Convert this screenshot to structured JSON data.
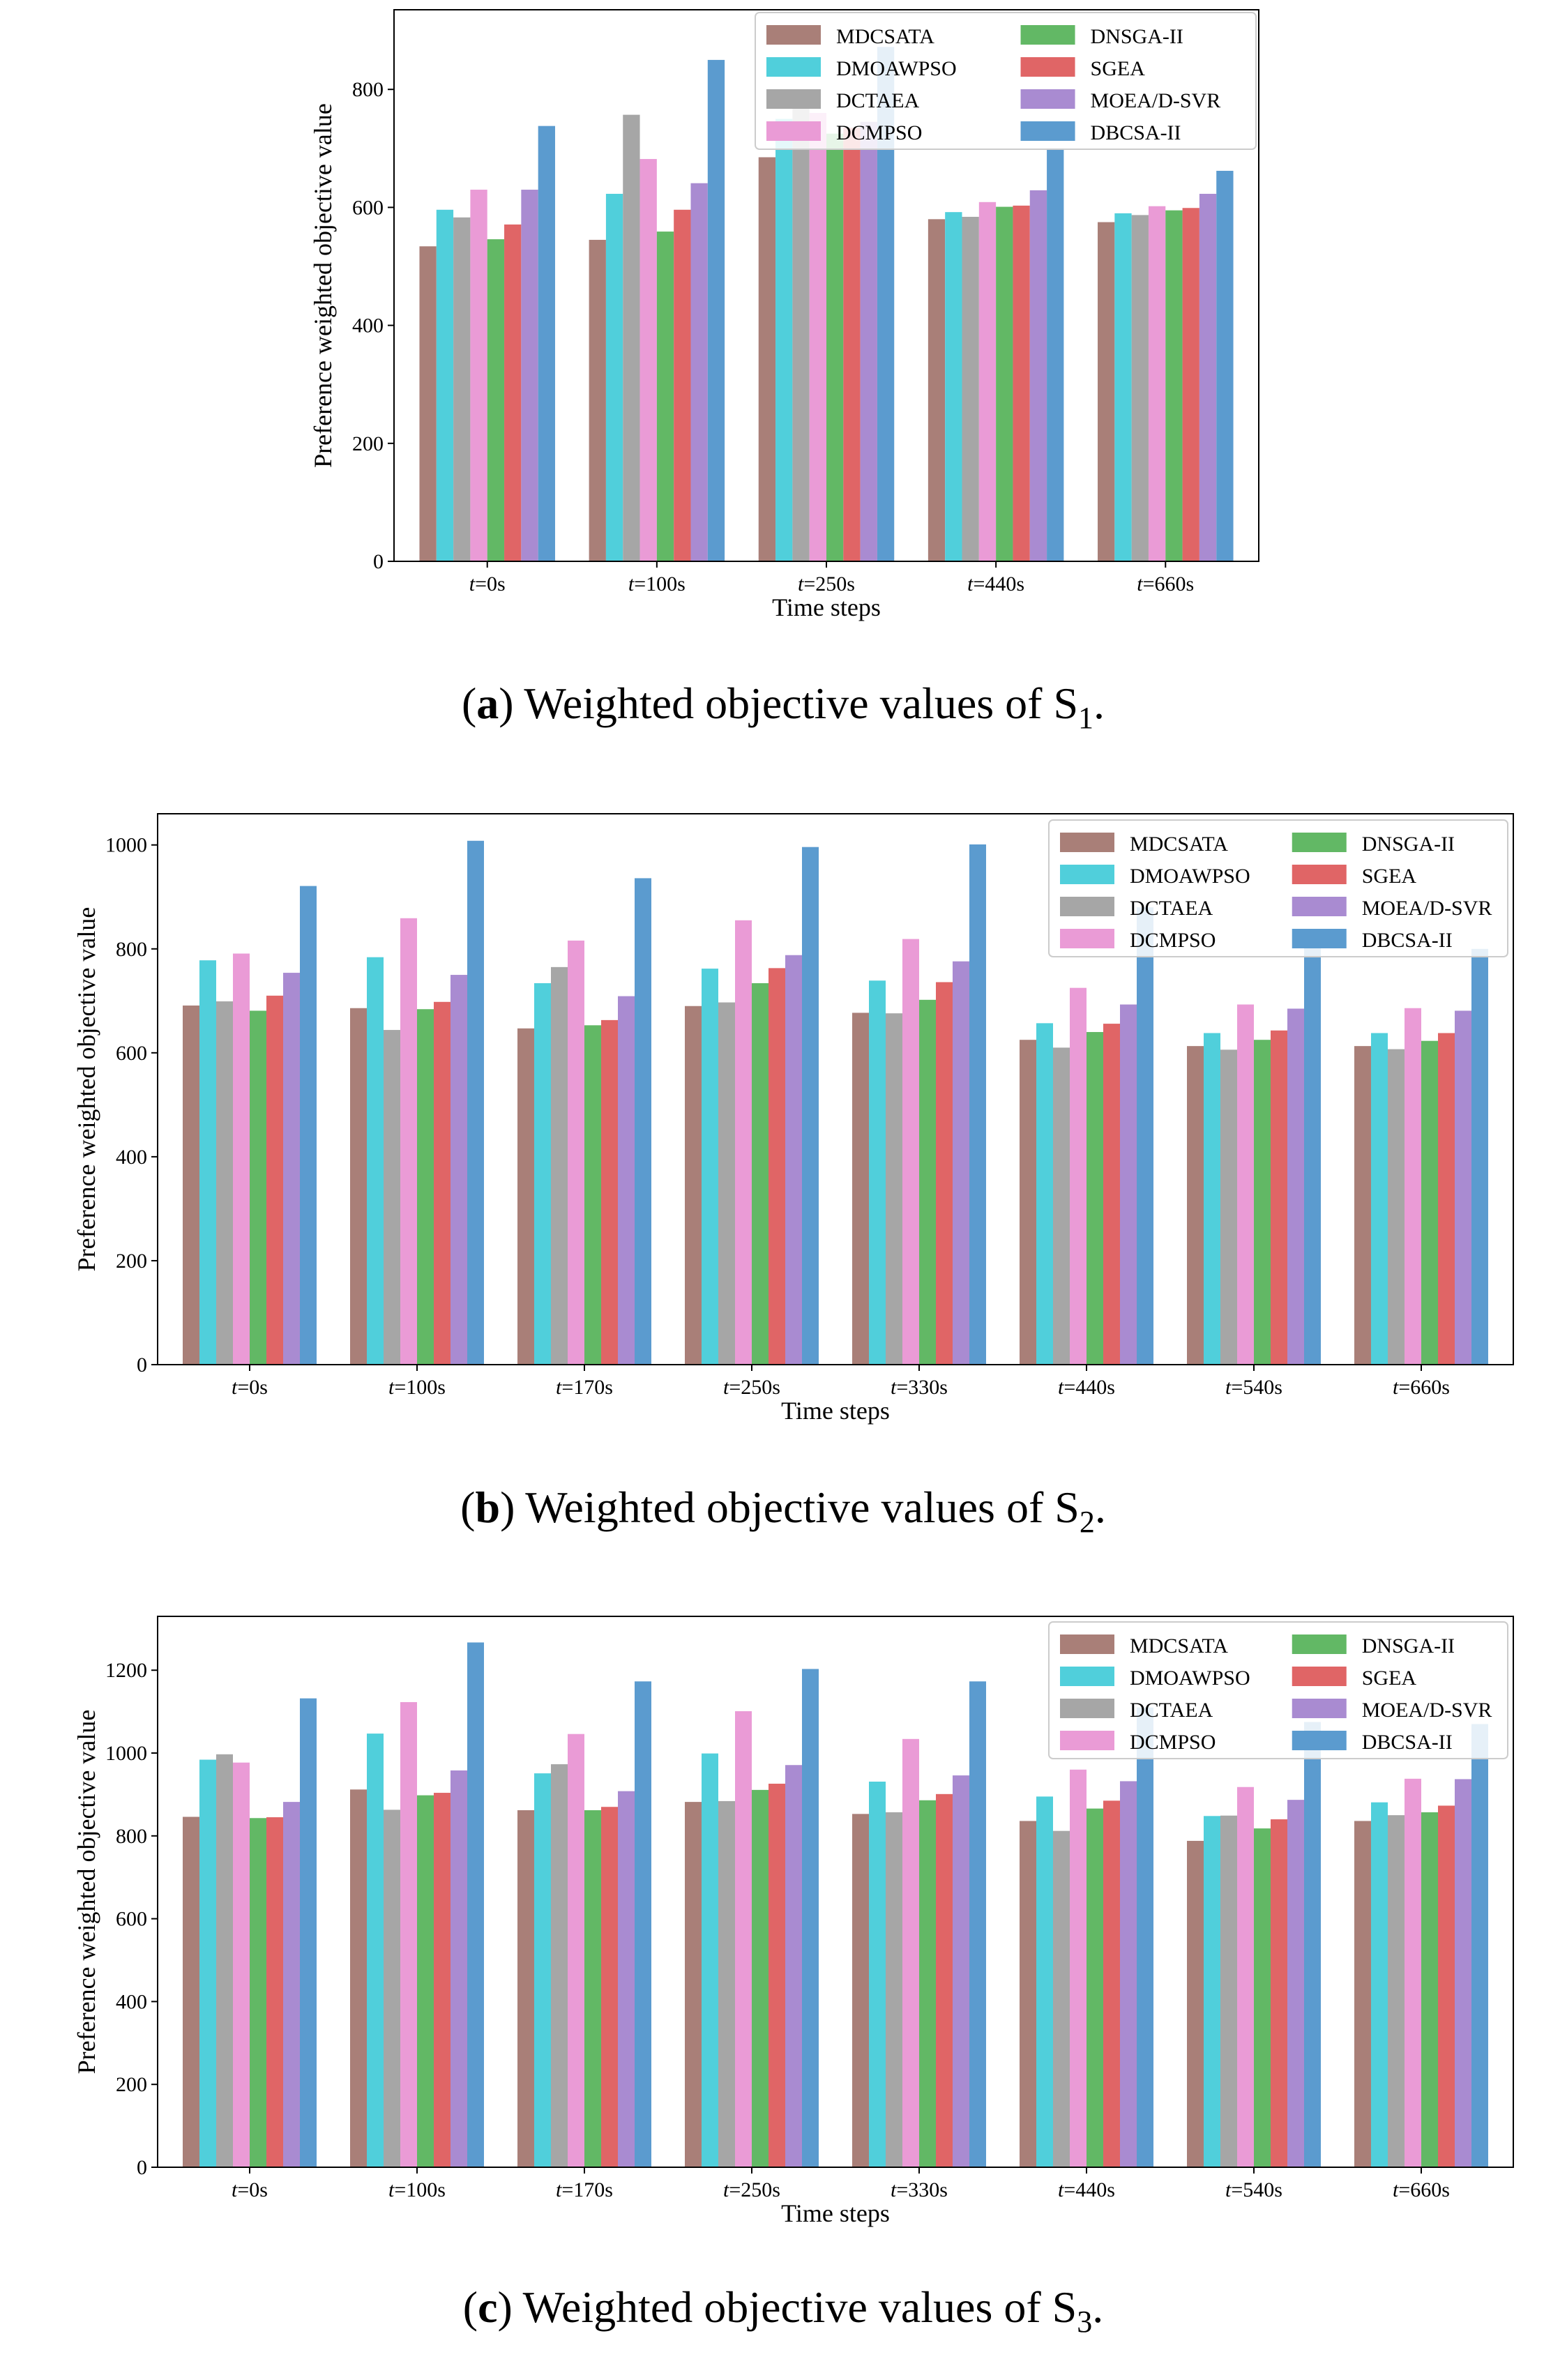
{
  "legend": [
    "MDCSATA",
    "DMOAWPSO",
    "DCTAEA",
    "DCMPSO",
    "DNSGA-II",
    "SGEA",
    "MOEA/D-SVR",
    "DBCSA-II"
  ],
  "colors": [
    "#a97f78",
    "#50cfdb",
    "#a6a6a6",
    "#ea9bd6",
    "#62b865",
    "#e06566",
    "#a98bd1",
    "#5b9bcf"
  ],
  "chart_data": [
    {
      "type": "bar",
      "caption_letter": "a",
      "caption_text": " Weighted objective values of S",
      "caption_sub": "1",
      "caption_end": ".",
      "xlabel": "Time steps",
      "ylabel": "Preference weighted objective value",
      "ylim": [
        0,
        935
      ],
      "yticks": [
        0,
        200,
        400,
        600,
        800
      ],
      "categories": [
        "t=0s",
        "t=100s",
        "t=250s",
        "t=440s",
        "t=660s"
      ],
      "category_parts": [
        [
          "t",
          "=0s"
        ],
        [
          "t",
          "=100s"
        ],
        [
          "t",
          "=250s"
        ],
        [
          "t",
          "=440s"
        ],
        [
          "t",
          "=660s"
        ]
      ],
      "legend_placement": "top-right",
      "grid": false,
      "series": [
        {
          "name": "MDCSATA",
          "values": [
            534,
            545,
            685,
            580,
            575
          ]
        },
        {
          "name": "DMOAWPSO",
          "values": [
            596,
            623,
            750,
            592,
            590
          ]
        },
        {
          "name": "DCTAEA",
          "values": [
            583,
            757,
            770,
            584,
            587
          ]
        },
        {
          "name": "DCMPSO",
          "values": [
            630,
            682,
            760,
            609,
            602
          ]
        },
        {
          "name": "DNSGA-II",
          "values": [
            546,
            559,
            725,
            601,
            595
          ]
        },
        {
          "name": "SGEA",
          "values": [
            571,
            596,
            735,
            603,
            599
          ]
        },
        {
          "name": "MOEA/D-SVR",
          "values": [
            630,
            641,
            745,
            629,
            623
          ]
        },
        {
          "name": "DBCSA-II",
          "values": [
            738,
            850,
            872,
            700,
            662
          ]
        }
      ]
    },
    {
      "type": "bar",
      "caption_letter": "b",
      "caption_text": " Weighted objective values of S",
      "caption_sub": "2",
      "caption_end": ".",
      "xlabel": "Time steps",
      "ylabel": "Preference weighted objective value",
      "ylim": [
        0,
        1060
      ],
      "yticks": [
        0,
        200,
        400,
        600,
        800,
        1000
      ],
      "categories": [
        "t=0s",
        "t=100s",
        "t=170s",
        "t=250s",
        "t=330s",
        "t=440s",
        "t=540s",
        "t=660s"
      ],
      "category_parts": [
        [
          "t",
          "=0s"
        ],
        [
          "t",
          "=100s"
        ],
        [
          "t",
          "=170s"
        ],
        [
          "t",
          "=250s"
        ],
        [
          "t",
          "=330s"
        ],
        [
          "t",
          "=440s"
        ],
        [
          "t",
          "=540s"
        ],
        [
          "t",
          "=660s"
        ]
      ],
      "legend_placement": "top-right",
      "grid": false,
      "series": [
        {
          "name": "MDCSATA",
          "values": [
            691,
            686,
            647,
            690,
            677,
            625,
            613,
            613
          ]
        },
        {
          "name": "DMOAWPSO",
          "values": [
            778,
            784,
            734,
            762,
            739,
            657,
            638,
            638
          ]
        },
        {
          "name": "DCTAEA",
          "values": [
            699,
            644,
            765,
            697,
            676,
            610,
            606,
            607
          ]
        },
        {
          "name": "DCMPSO",
          "values": [
            791,
            859,
            816,
            855,
            819,
            725,
            693,
            686
          ]
        },
        {
          "name": "DNSGA-II",
          "values": [
            681,
            684,
            653,
            734,
            702,
            640,
            625,
            623
          ]
        },
        {
          "name": "SGEA",
          "values": [
            710,
            698,
            663,
            763,
            736,
            656,
            643,
            638
          ]
        },
        {
          "name": "MOEA/D-SVR",
          "values": [
            754,
            750,
            709,
            788,
            776,
            693,
            685,
            681
          ]
        },
        {
          "name": "DBCSA-II",
          "values": [
            921,
            1008,
            936,
            996,
            1001,
            880,
            832,
            800
          ]
        }
      ]
    },
    {
      "type": "bar",
      "caption_letter": "c",
      "caption_text": " Weighted objective values of S",
      "caption_sub": "3",
      "caption_end": ".",
      "xlabel": "Time steps",
      "ylabel": "Preference weighted objective value",
      "ylim": [
        0,
        1330
      ],
      "yticks": [
        0,
        200,
        400,
        600,
        800,
        1000,
        1200
      ],
      "categories": [
        "t=0s",
        "t=100s",
        "t=170s",
        "t=250s",
        "t=330s",
        "t=440s",
        "t=540s",
        "t=660s"
      ],
      "category_parts": [
        [
          "t",
          "=0s"
        ],
        [
          "t",
          "=100s"
        ],
        [
          "t",
          "=170s"
        ],
        [
          "t",
          "=250s"
        ],
        [
          "t",
          "=330s"
        ],
        [
          "t",
          "=440s"
        ],
        [
          "t",
          "=540s"
        ],
        [
          "t",
          "=660s"
        ]
      ],
      "legend_placement": "top-right",
      "grid": false,
      "series": [
        {
          "name": "MDCSATA",
          "values": [
            846,
            912,
            862,
            882,
            853,
            836,
            788,
            836
          ]
        },
        {
          "name": "DMOAWPSO",
          "values": [
            984,
            1047,
            951,
            999,
            931,
            895,
            848,
            881
          ]
        },
        {
          "name": "DCTAEA",
          "values": [
            997,
            863,
            973,
            884,
            857,
            812,
            849,
            850
          ]
        },
        {
          "name": "DCMPSO",
          "values": [
            977,
            1123,
            1046,
            1101,
            1034,
            960,
            918,
            938
          ]
        },
        {
          "name": "DNSGA-II",
          "values": [
            843,
            898,
            862,
            911,
            886,
            866,
            818,
            857
          ]
        },
        {
          "name": "SGEA",
          "values": [
            845,
            904,
            870,
            926,
            901,
            885,
            840,
            873
          ]
        },
        {
          "name": "MOEA/D-SVR",
          "values": [
            882,
            958,
            908,
            971,
            946,
            932,
            887,
            937
          ]
        },
        {
          "name": "DBCSA-II",
          "values": [
            1132,
            1267,
            1173,
            1203,
            1173,
            1110,
            1075,
            1070
          ]
        }
      ]
    }
  ]
}
